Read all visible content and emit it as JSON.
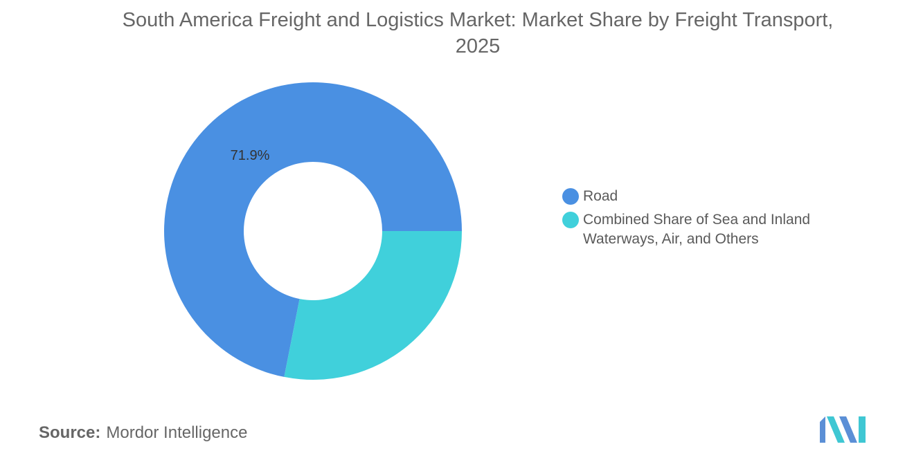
{
  "chart_data": {
    "type": "pie",
    "variant": "donut",
    "title": "South America Freight and Logistics Market: Market Share by Freight Transport, 2025",
    "categories": [
      "Road",
      "Combined Share of Sea and Inland Waterways, Air, and Others"
    ],
    "values": [
      71.9,
      28.1
    ],
    "data_labels": [
      "71.9%",
      ""
    ],
    "colors": [
      "#4a90e2",
      "#40d0db"
    ],
    "legend_position": "right"
  },
  "source": {
    "label": "Source:",
    "value": "Mordor Intelligence"
  },
  "logo": {
    "icon": "mordor-intelligence-logo",
    "colors": [
      "#5b8fd6",
      "#3fc7d3"
    ]
  }
}
